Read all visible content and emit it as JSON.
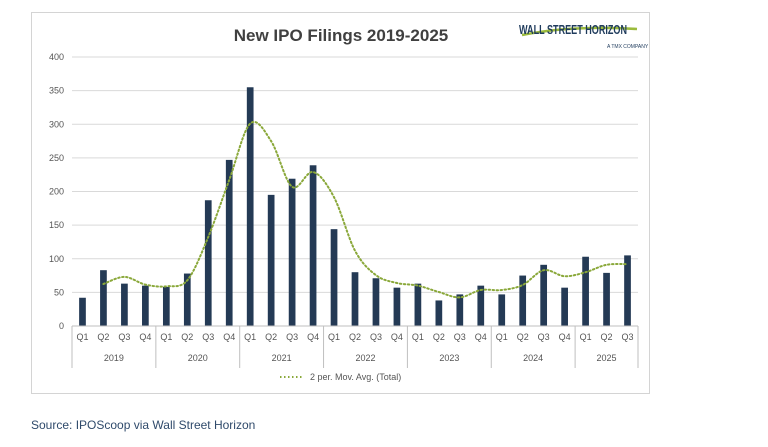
{
  "chart_data": {
    "type": "bar",
    "title": "New IPO Filings 2019-2025",
    "xlabel": "",
    "ylabel": "",
    "ylim": [
      0,
      400
    ],
    "yticks": [
      0,
      50,
      100,
      150,
      200,
      250,
      300,
      350,
      400
    ],
    "grid": true,
    "categories": [
      "Q1",
      "Q2",
      "Q3",
      "Q4",
      "Q1",
      "Q2",
      "Q3",
      "Q4",
      "Q1",
      "Q2",
      "Q3",
      "Q4",
      "Q1",
      "Q2",
      "Q3",
      "Q4",
      "Q1",
      "Q2",
      "Q3",
      "Q4",
      "Q1",
      "Q2",
      "Q3",
      "Q4",
      "Q1",
      "Q2",
      "Q3"
    ],
    "years": [
      {
        "label": "2019",
        "count": 4
      },
      {
        "label": "2020",
        "count": 4
      },
      {
        "label": "2021",
        "count": 4
      },
      {
        "label": "2022",
        "count": 4
      },
      {
        "label": "2023",
        "count": 4
      },
      {
        "label": "2024",
        "count": 4
      },
      {
        "label": "2025",
        "count": 3
      }
    ],
    "values": [
      42,
      83,
      63,
      60,
      58,
      78,
      187,
      247,
      355,
      195,
      219,
      239,
      144,
      80,
      71,
      57,
      63,
      38,
      47,
      60,
      47,
      75,
      91,
      57,
      103,
      79,
      105
    ],
    "moving_average": {
      "name": "2 per. Mov. Avg. (Total)",
      "period": 2,
      "style": "dotted"
    },
    "legend_position": "bottom",
    "bar_color": "#243a55",
    "trend_color": "#8aa83a"
  },
  "logo": {
    "name": "WALL STREET HORIZON",
    "sub": "A TMX COMPANY"
  },
  "source": "Source: IPOScoop via Wall Street Horizon"
}
